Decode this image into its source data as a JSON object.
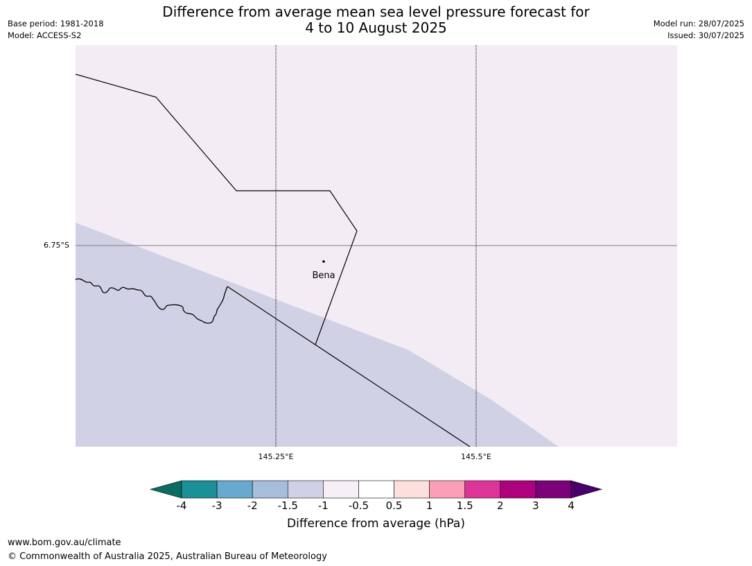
{
  "title": {
    "line1": "Difference from average mean sea level pressure forecast for",
    "line2": "4 to 10 August 2025"
  },
  "meta": {
    "base_period": "Base period: 1981-2018",
    "model": "Model: ACCESS-S2",
    "model_run": "Model run: 28/07/2025",
    "issued": "Issued: 30/07/2025"
  },
  "map": {
    "place_label": "Bena",
    "lat_label": "6.75°S",
    "lon_labels": [
      "145.25°E",
      "145.5°E"
    ],
    "fill_colors": {
      "land_region": "#f4ecf5",
      "sea_region": "#d0d1e5"
    }
  },
  "colorbar": {
    "label": "Difference from average (hPa)",
    "ticks": [
      "-4",
      "-3",
      "-2",
      "-1.5",
      "-1",
      "-0.5",
      "0.5",
      "1",
      "1.5",
      "2",
      "3",
      "4"
    ],
    "colors": [
      "#0b6d61",
      "#1c9099",
      "#67a9cf",
      "#a6bddb",
      "#d0d1e6",
      "#f6eff7",
      "#ffffff",
      "#fde0dd",
      "#fa9fb5",
      "#dd3497",
      "#ae017e",
      "#7a0177",
      "#49006a"
    ]
  },
  "footer": {
    "url": "www.bom.gov.au/climate",
    "copyright": "© Commonwealth of Australia 2025, Australian Bureau of Meteorology"
  }
}
